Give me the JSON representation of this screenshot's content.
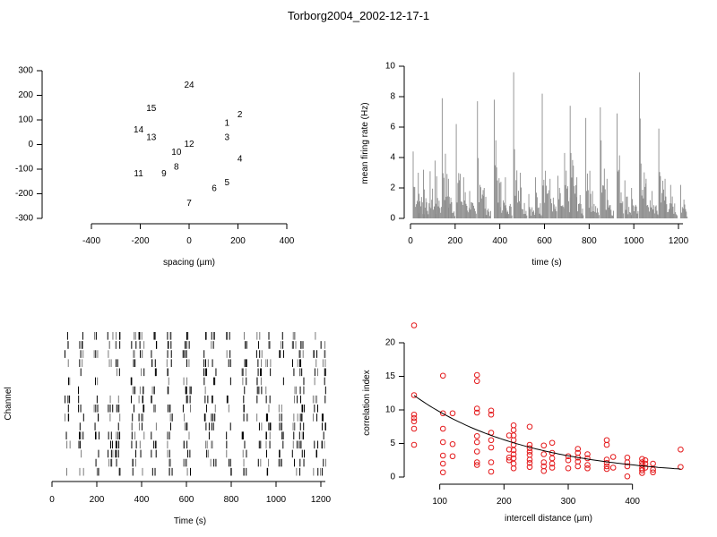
{
  "title": "Torborg2004_2002-12-17-1",
  "chart_data": [
    {
      "type": "scatter",
      "xlabel": "spacing (µm)",
      "ylabel": "",
      "xlim": [
        -400,
        400
      ],
      "ylim": [
        -300,
        300
      ],
      "xticks": [
        "-400",
        "-200",
        "0",
        "200",
        "400"
      ],
      "yticks": [
        "300",
        "200",
        "100",
        "0",
        "-100",
        "-200",
        "-300"
      ],
      "points": [
        {
          "label": "1",
          "x": 155,
          "y": 86
        },
        {
          "label": "2",
          "x": 208,
          "y": 120
        },
        {
          "label": "3",
          "x": 155,
          "y": 28
        },
        {
          "label": "4",
          "x": 208,
          "y": -60
        },
        {
          "label": "5",
          "x": 155,
          "y": -155
        },
        {
          "label": "6",
          "x": 103,
          "y": -180
        },
        {
          "label": "7",
          "x": 0,
          "y": -240
        },
        {
          "label": "8",
          "x": -52,
          "y": -92
        },
        {
          "label": "9",
          "x": -103,
          "y": -120
        },
        {
          "label": "10",
          "x": -52,
          "y": -32
        },
        {
          "label": "11",
          "x": -207,
          "y": -120
        },
        {
          "label": "12",
          "x": 0,
          "y": 0
        },
        {
          "label": "13",
          "x": -155,
          "y": 28
        },
        {
          "label": "14",
          "x": -207,
          "y": 58
        },
        {
          "label": "15",
          "x": -155,
          "y": 146
        },
        {
          "label": "24",
          "x": 0,
          "y": 240
        }
      ]
    },
    {
      "type": "bar",
      "xlabel": "time (s)",
      "ylabel": "mean firing rate (Hz)",
      "xlim": [
        0,
        1220
      ],
      "ylim": [
        0,
        10
      ],
      "xticks": [
        "0",
        "200",
        "400",
        "600",
        "800",
        "1000",
        "1200"
      ],
      "yticks": [
        "0",
        "2",
        "4",
        "6",
        "8",
        "10"
      ],
      "bursts": [
        {
          "t": 12,
          "peak": 4.4
        },
        {
          "t": 35,
          "peak": 3.0
        },
        {
          "t": 58,
          "peak": 3.2
        },
        {
          "t": 88,
          "peak": 3.1
        },
        {
          "t": 110,
          "peak": 3.8
        },
        {
          "t": 142,
          "peak": 7.9
        },
        {
          "t": 170,
          "peak": 2.6
        },
        {
          "t": 205,
          "peak": 6.2
        },
        {
          "t": 238,
          "peak": 2.7
        },
        {
          "t": 265,
          "peak": 1.8
        },
        {
          "t": 300,
          "peak": 7.7
        },
        {
          "t": 330,
          "peak": 2.0
        },
        {
          "t": 375,
          "peak": 7.8
        },
        {
          "t": 405,
          "peak": 2.4
        },
        {
          "t": 425,
          "peak": 2.7
        },
        {
          "t": 462,
          "peak": 9.6
        },
        {
          "t": 492,
          "peak": 3.0
        },
        {
          "t": 530,
          "peak": 1.6
        },
        {
          "t": 560,
          "peak": 2.7
        },
        {
          "t": 590,
          "peak": 8.2
        },
        {
          "t": 625,
          "peak": 2.6
        },
        {
          "t": 660,
          "peak": 2.8
        },
        {
          "t": 690,
          "peak": 4.3
        },
        {
          "t": 715,
          "peak": 7.4
        },
        {
          "t": 745,
          "peak": 2.7
        },
        {
          "t": 785,
          "peak": 6.6
        },
        {
          "t": 815,
          "peak": 1.8
        },
        {
          "t": 850,
          "peak": 7.3
        },
        {
          "t": 880,
          "peak": 2.6
        },
        {
          "t": 925,
          "peak": 6.9
        },
        {
          "t": 960,
          "peak": 2.5
        },
        {
          "t": 990,
          "peak": 2.0
        },
        {
          "t": 1025,
          "peak": 9.6
        },
        {
          "t": 1055,
          "peak": 2.6
        },
        {
          "t": 1082,
          "peak": 1.8
        },
        {
          "t": 1112,
          "peak": 5.9
        },
        {
          "t": 1140,
          "peak": 2.6
        },
        {
          "t": 1165,
          "peak": 2.2
        },
        {
          "t": 1210,
          "peak": 2.2
        }
      ]
    },
    {
      "type": "raster",
      "xlabel": "Time (s)",
      "ylabel": "Channel",
      "xlim": [
        0,
        1220
      ],
      "xticks": [
        "0",
        "200",
        "400",
        "600",
        "800",
        "1000",
        "1200"
      ],
      "channels": 16,
      "bursts": [
        70,
        130,
        200,
        260,
        295,
        365,
        400,
        455,
        525,
        595,
        610,
        690,
        720,
        790,
        860,
        925,
        965,
        1025,
        1085,
        1115,
        1175,
        1210
      ]
    },
    {
      "type": "scatter",
      "xlabel": "intercell distance (µm)",
      "ylabel": "correlation index",
      "xlim": [
        60,
        480
      ],
      "ylim": [
        0,
        22
      ],
      "xticks": [
        "100",
        "200",
        "300",
        "400"
      ],
      "yticks": [
        "0",
        "5",
        "10",
        "15",
        "20"
      ],
      "marker_color": "#e41a1c",
      "fit": {
        "a": 17.0,
        "b": -0.0056
      },
      "points": [
        [
          60,
          22.6
        ],
        [
          60,
          12.2
        ],
        [
          60,
          9.3
        ],
        [
          60,
          8.8
        ],
        [
          60,
          8.3
        ],
        [
          60,
          4.8
        ],
        [
          60,
          7.2
        ],
        [
          105,
          15.1
        ],
        [
          105,
          9.5
        ],
        [
          105,
          7.2
        ],
        [
          105,
          5.2
        ],
        [
          105,
          3.2
        ],
        [
          105,
          2.0
        ],
        [
          105,
          0.7
        ],
        [
          120,
          9.5
        ],
        [
          120,
          4.9
        ],
        [
          120,
          3.1
        ],
        [
          158,
          15.2
        ],
        [
          158,
          14.3
        ],
        [
          158,
          10.2
        ],
        [
          158,
          9.6
        ],
        [
          158,
          6.1
        ],
        [
          158,
          5.2
        ],
        [
          158,
          3.8
        ],
        [
          158,
          2.2
        ],
        [
          158,
          1.8
        ],
        [
          180,
          9.9
        ],
        [
          180,
          9.3
        ],
        [
          180,
          6.6
        ],
        [
          180,
          5.5
        ],
        [
          180,
          4.4
        ],
        [
          180,
          2.2
        ],
        [
          180,
          0.8
        ],
        [
          208,
          6.2
        ],
        [
          208,
          4.1
        ],
        [
          208,
          2.9
        ],
        [
          208,
          2.5
        ],
        [
          215,
          7.7
        ],
        [
          215,
          7.0
        ],
        [
          215,
          6.2
        ],
        [
          215,
          5.5
        ],
        [
          215,
          4.8
        ],
        [
          215,
          4.0
        ],
        [
          215,
          3.4
        ],
        [
          215,
          2.8
        ],
        [
          215,
          2.0
        ],
        [
          215,
          1.3
        ],
        [
          240,
          7.5
        ],
        [
          240,
          4.8
        ],
        [
          240,
          4.3
        ],
        [
          240,
          3.8
        ],
        [
          240,
          3.3
        ],
        [
          240,
          2.6
        ],
        [
          240,
          2.1
        ],
        [
          240,
          1.5
        ],
        [
          262,
          4.7
        ],
        [
          262,
          3.4
        ],
        [
          262,
          2.2
        ],
        [
          262,
          1.6
        ],
        [
          262,
          0.9
        ],
        [
          275,
          5.1
        ],
        [
          275,
          3.6
        ],
        [
          275,
          2.8
        ],
        [
          275,
          2.0
        ],
        [
          275,
          1.4
        ],
        [
          300,
          3.1
        ],
        [
          300,
          2.5
        ],
        [
          300,
          1.3
        ],
        [
          315,
          4.2
        ],
        [
          315,
          3.6
        ],
        [
          315,
          2.9
        ],
        [
          315,
          2.3
        ],
        [
          315,
          1.6
        ],
        [
          330,
          3.4
        ],
        [
          330,
          2.8
        ],
        [
          330,
          1.8
        ],
        [
          330,
          1.3
        ],
        [
          360,
          5.5
        ],
        [
          360,
          4.8
        ],
        [
          360,
          2.6
        ],
        [
          360,
          2.1
        ],
        [
          360,
          1.6
        ],
        [
          360,
          1.2
        ],
        [
          370,
          3.0
        ],
        [
          370,
          1.4
        ],
        [
          392,
          2.9
        ],
        [
          392,
          2.2
        ],
        [
          392,
          1.6
        ],
        [
          392,
          0.1
        ],
        [
          415,
          2.7
        ],
        [
          415,
          2.2
        ],
        [
          415,
          1.8
        ],
        [
          415,
          1.3
        ],
        [
          415,
          1.0
        ],
        [
          415,
          0.6
        ],
        [
          420,
          2.5
        ],
        [
          420,
          2.0
        ],
        [
          420,
          1.4
        ],
        [
          432,
          2.0
        ],
        [
          432,
          1.1
        ],
        [
          432,
          0.7
        ],
        [
          475,
          4.1
        ],
        [
          475,
          1.5
        ]
      ]
    }
  ]
}
